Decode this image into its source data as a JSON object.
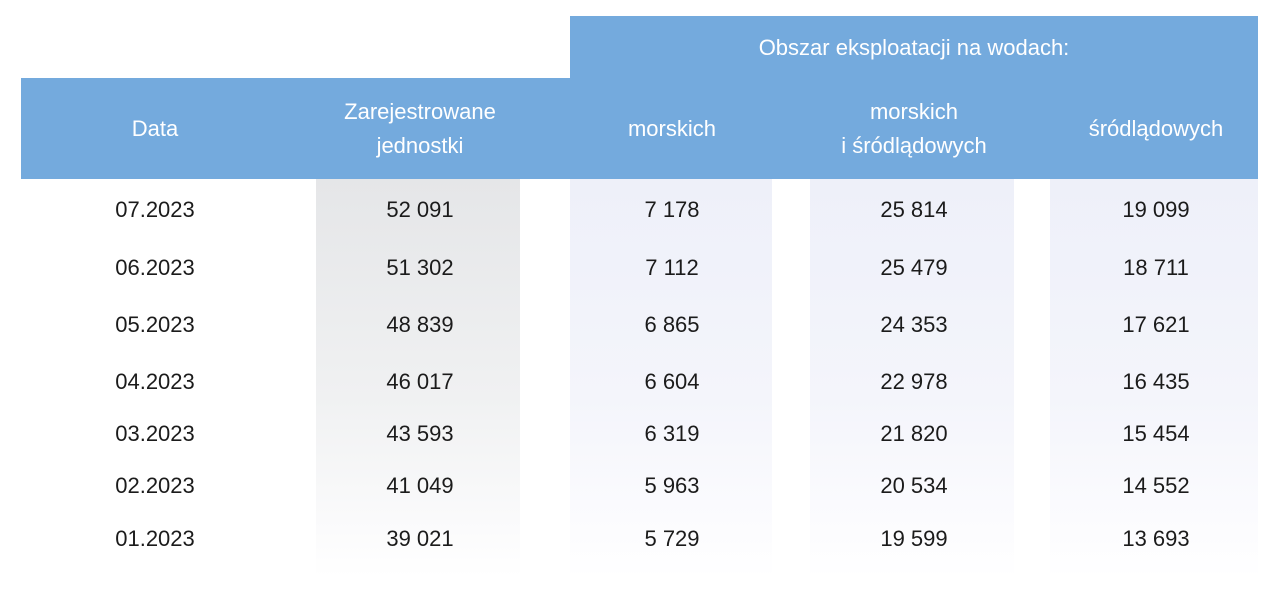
{
  "chart_data": {
    "type": "table",
    "group_header": "Obszar eksploatacji na wodach:",
    "columns": [
      "Data",
      "Zarejestrowane\njednostki",
      "morskich",
      "morskich\ni śródlądowych",
      "śródlądowych"
    ],
    "rows": [
      [
        "07.2023",
        "52 091",
        "7 178",
        "25 814",
        "19 099"
      ],
      [
        "06.2023",
        "51 302",
        "7 112",
        "25 479",
        "18 711"
      ],
      [
        "05.2023",
        "48 839",
        "6 865",
        "24 353",
        "17 621"
      ],
      [
        "04.2023",
        "46 017",
        "6 604",
        "22 978",
        "16 435"
      ],
      [
        "03.2023",
        "43 593",
        "6 319",
        "21 820",
        "15 454"
      ],
      [
        "02.2023",
        "41 049",
        "5 963",
        "20 534",
        "14 552"
      ],
      [
        "01.2023",
        "39 021",
        "5 729",
        "19 599",
        "13 693"
      ]
    ]
  },
  "colors": {
    "header_background": "#74aadd",
    "header_text": "#ffffff",
    "body_text": "#1b1b1b",
    "registered_column_shade": "#e5e6e8",
    "water_columns_shade": "#eef0f9"
  }
}
